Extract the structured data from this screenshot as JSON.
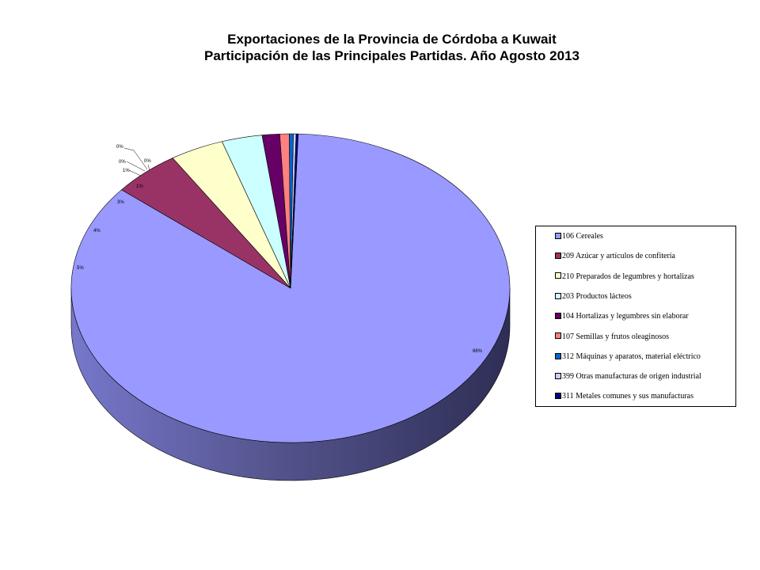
{
  "title_line1": "Exportaciones de la Provincia de Córdoba a Kuwait",
  "title_line2": "Participación de las Principales Partidas. Año Agosto 2013",
  "chart_data": {
    "type": "pie",
    "title": "Exportaciones de la Provincia de Córdoba a Kuwait / Participación de las Principales Partidas. Año Agosto 2013",
    "legend_position": "right",
    "three_d": true,
    "slices": [
      {
        "name": "106 Cereales",
        "value": 86,
        "label": "86%",
        "color": "#9999FF",
        "side": "#3B3B66"
      },
      {
        "name": "209 Azúcar y artículos de confitería",
        "value": 5,
        "label": "5%",
        "color": "#993366",
        "side": "#4D1A33"
      },
      {
        "name": "210 Preparados de legumbres y hortalizas",
        "value": 4,
        "label": "4%",
        "color": "#FFFFCC",
        "side": "#99997A"
      },
      {
        "name": "203 Productos lácteos",
        "value": 3,
        "label": "3%",
        "color": "#CCFFFF",
        "side": "#7A9999"
      },
      {
        "name": "104 Hortalizas y legumbres sin elaborar",
        "value": 1.3,
        "label": "1%",
        "color": "#660066",
        "side": "#330033"
      },
      {
        "name": "107 Semillas y frutos oleaginosos",
        "value": 0.7,
        "label": "1%",
        "color": "#FF8080",
        "side": "#994D4D"
      },
      {
        "name": "312 Máquinas y aparatos, material eléctrico",
        "value": 0.3,
        "label": "0%",
        "color": "#0066CC",
        "side": "#003366"
      },
      {
        "name": "399 Otras manufacturas de origen industrial",
        "value": 0.2,
        "label": "0%",
        "color": "#CCCCFF",
        "side": "#6B6B99"
      },
      {
        "name": "311 Metales comunes y sus manufacturas",
        "value": 0.15,
        "label": "0%",
        "color": "#000080",
        "side": "#000040"
      }
    ]
  }
}
